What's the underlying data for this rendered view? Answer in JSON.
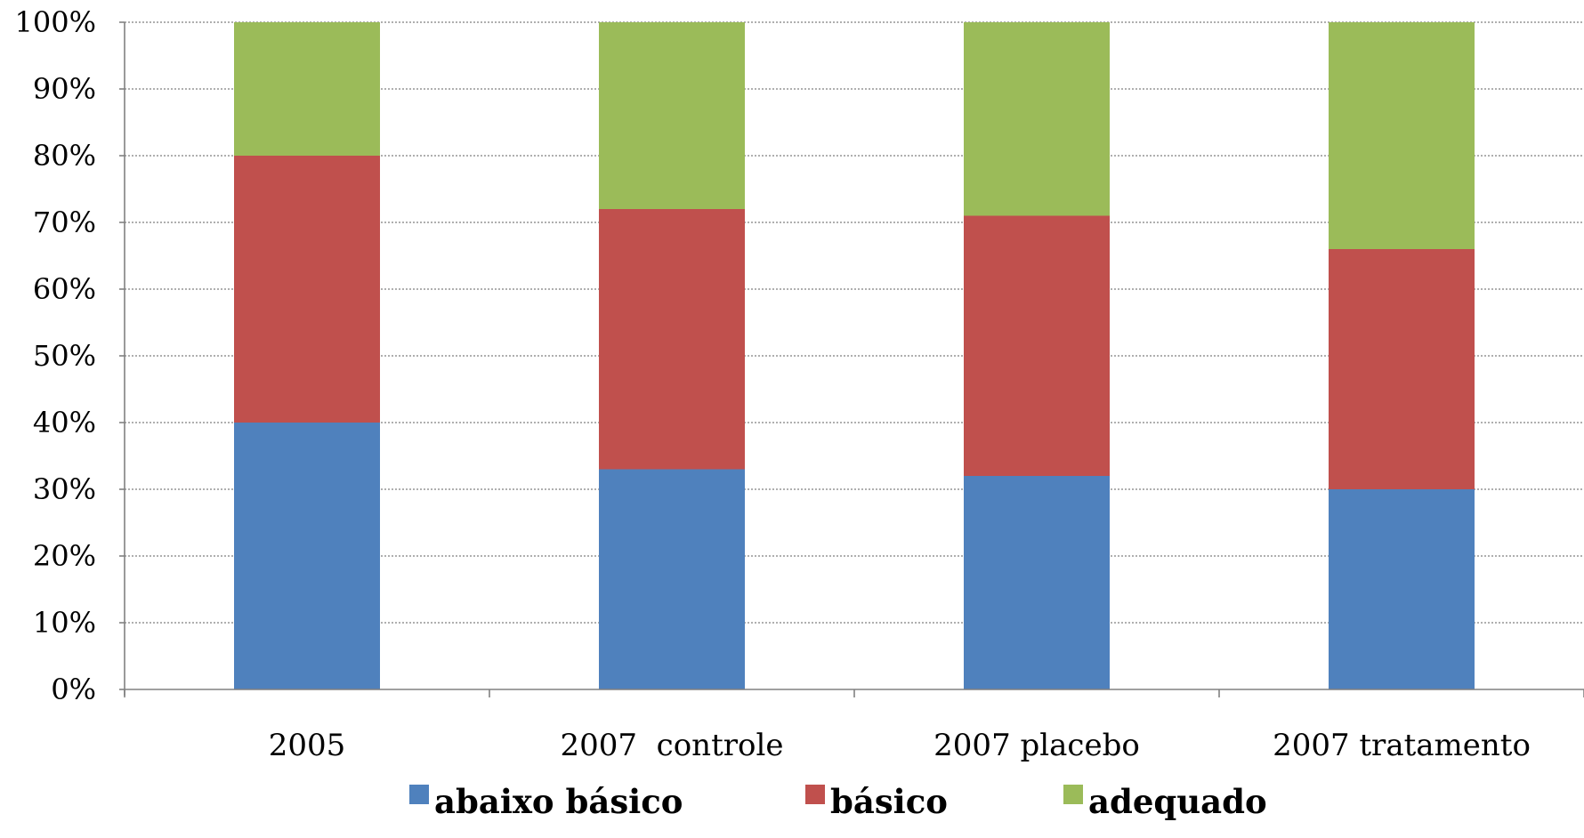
{
  "chart_data": {
    "type": "bar",
    "stacked": true,
    "categories": [
      "2005",
      "2007  controle",
      "2007 placebo",
      "2007 tratamento"
    ],
    "series": [
      {
        "name": "abaixo básico",
        "color": "#4f81bd",
        "values": [
          40,
          33,
          32,
          30
        ]
      },
      {
        "name": "básico",
        "color": "#c0504d",
        "values": [
          40,
          39,
          39,
          36
        ]
      },
      {
        "name": "adequado",
        "color": "#9bbb59",
        "values": [
          20,
          28,
          29,
          34
        ]
      }
    ],
    "ylim": [
      0,
      100
    ],
    "y_ticks": [
      "0%",
      "10%",
      "20%",
      "30%",
      "40%",
      "50%",
      "60%",
      "70%",
      "80%",
      "90%",
      "100%"
    ],
    "grid": true,
    "legend_position": "bottom",
    "title": "",
    "xlabel": "",
    "ylabel": ""
  }
}
